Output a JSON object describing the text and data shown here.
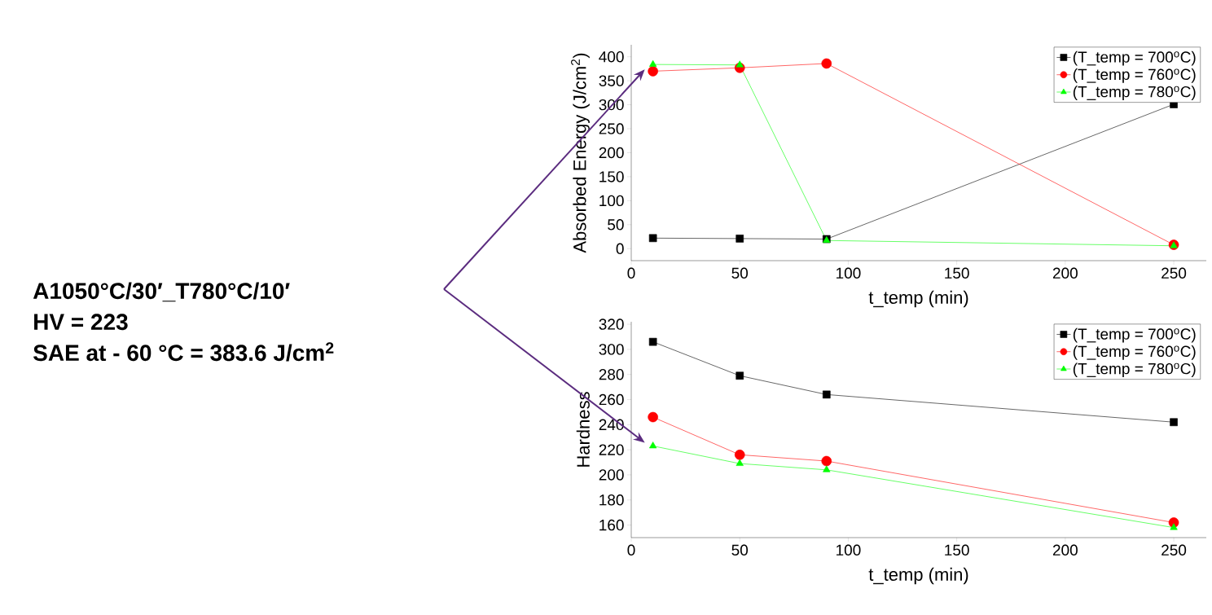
{
  "chart_data": [
    {
      "type": "line",
      "ylabel": "Absorbed Energy (J/cm$^{2}$)",
      "xlabel": "t_temp (min)",
      "x": [
        10,
        50,
        90,
        250
      ],
      "series": [
        {
          "name": "(T_temp = 700$^{o}$C)",
          "color": "#000000",
          "marker": "square",
          "values": [
            22,
            21,
            20,
            301
          ]
        },
        {
          "name": "(T_temp = 760$^{o}$C)",
          "color": "#ff0000",
          "marker": "circle",
          "values": [
            370,
            377,
            386,
            8
          ]
        },
        {
          "name": "(T_temp = 780$^{o}$C)",
          "color": "#00ff00",
          "marker": "triangle",
          "values": [
            384,
            383,
            17,
            6
          ]
        }
      ],
      "xlim": [
        0,
        265
      ],
      "ylim": [
        -25,
        425
      ],
      "xticks": [
        0,
        50,
        100,
        150,
        200,
        250
      ],
      "yticks": [
        0,
        50,
        100,
        150,
        200,
        250,
        300,
        350,
        400
      ],
      "legend": "top right",
      "grid": false,
      "annotations": [
        "A1050°C/30′_T780°C/10′",
        "HV = 223",
        "SAE at - 60 °C = 383.6 J/cm$^{2}$"
      ]
    },
    {
      "type": "line",
      "ylabel": "Hardness",
      "xlabel": "t_temp (min)",
      "x": [
        10,
        50,
        90,
        250
      ],
      "series": [
        {
          "name": "(T_temp = 700$^{o}$C)",
          "color": "#000000",
          "marker": "square",
          "values": [
            306,
            279,
            264,
            242
          ]
        },
        {
          "name": "(T_temp = 760$^{o}$C)",
          "color": "#ff0000",
          "marker": "circle",
          "values": [
            246,
            216,
            211,
            162
          ]
        },
        {
          "name": "(T_temp = 780$^{o}$C)",
          "color": "#00ff00",
          "marker": "triangle",
          "values": [
            223,
            209,
            204,
            158
          ]
        }
      ],
      "xlim": [
        0,
        265
      ],
      "ylim": [
        150,
        322
      ],
      "xticks": [
        0,
        50,
        100,
        150,
        200,
        250
      ],
      "yticks": [
        160,
        180,
        200,
        220,
        240,
        260,
        280,
        300,
        320
      ],
      "legend": "top right",
      "grid": false
    }
  ]
}
